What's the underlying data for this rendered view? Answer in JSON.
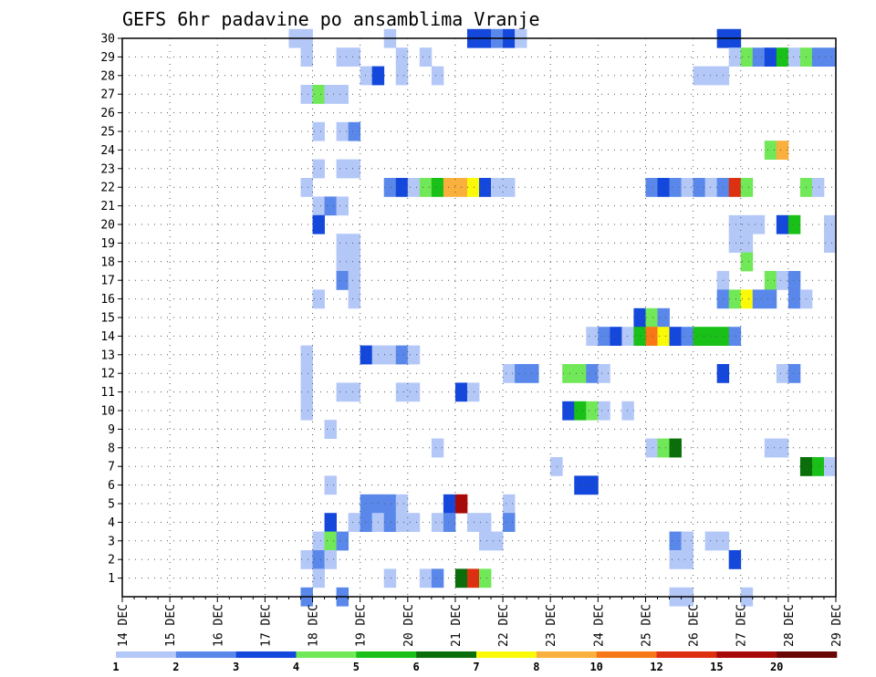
{
  "chart_data": {
    "type": "heatmap",
    "title": "GEFS 6hr padavine po ansamblima Vranje",
    "x_tick_labels": [
      "14 DEC",
      "15 DEC",
      "16 DEC",
      "17 DEC",
      "18 DEC",
      "19 DEC",
      "20 DEC",
      "21 DEC",
      "22 DEC",
      "23 DEC",
      "24 DEC",
      "25 DEC",
      "26 DEC",
      "27 DEC",
      "28 DEC",
      "29 DEC"
    ],
    "y_tick_labels": [
      "1",
      "2",
      "3",
      "4",
      "5",
      "6",
      "7",
      "8",
      "9",
      "10",
      "11",
      "12",
      "13",
      "14",
      "15",
      "16",
      "17",
      "18",
      "19",
      "20",
      "21",
      "22",
      "23",
      "24",
      "25",
      "26",
      "27",
      "28",
      "29",
      "30"
    ],
    "x_range_days": [
      14,
      29
    ],
    "y_range": [
      0,
      30
    ],
    "time_step_hours": 6,
    "grid": true,
    "colorbar": {
      "colors": [
        "#b4c8f8",
        "#5a88ea",
        "#1448dc",
        "#70e858",
        "#18c018",
        "#0a6e0a",
        "#fafa08",
        "#fab03c",
        "#f87818",
        "#dc3010",
        "#a80a0a",
        "#6a0606"
      ],
      "labels": [
        "1",
        "2",
        "3",
        "4",
        "5",
        "6",
        "7",
        "8",
        "10",
        "12",
        "15",
        "20"
      ]
    },
    "series": [
      {
        "member": 30,
        "cells": [
          [
            17.5,
            1
          ],
          [
            17.75,
            1
          ],
          [
            19.5,
            1
          ],
          [
            21.25,
            3
          ],
          [
            21.5,
            3
          ],
          [
            21.75,
            2
          ],
          [
            22.0,
            3
          ],
          [
            22.25,
            1
          ],
          [
            26.5,
            3
          ],
          [
            26.75,
            3
          ]
        ]
      },
      {
        "member": 29,
        "cells": [
          [
            17.75,
            1
          ],
          [
            18.5,
            1
          ],
          [
            18.75,
            1
          ],
          [
            19.75,
            1
          ],
          [
            20.25,
            1
          ],
          [
            26.75,
            1
          ],
          [
            27.0,
            4
          ],
          [
            27.25,
            2
          ],
          [
            27.5,
            3
          ],
          [
            27.75,
            5
          ],
          [
            28.0,
            1
          ],
          [
            28.25,
            4
          ],
          [
            28.5,
            2
          ],
          [
            28.75,
            2
          ],
          [
            29.0,
            2
          ]
        ]
      },
      {
        "member": 28,
        "cells": [
          [
            19.0,
            1
          ],
          [
            19.25,
            3
          ],
          [
            19.75,
            1
          ],
          [
            20.5,
            1
          ],
          [
            26.0,
            1
          ],
          [
            26.25,
            1
          ],
          [
            26.5,
            1
          ]
        ]
      },
      {
        "member": 27,
        "cells": [
          [
            17.75,
            1
          ],
          [
            18.0,
            4
          ],
          [
            18.25,
            1
          ],
          [
            18.5,
            1
          ]
        ]
      },
      {
        "member": 25,
        "cells": [
          [
            18.0,
            1
          ],
          [
            18.5,
            1
          ],
          [
            18.75,
            2
          ]
        ]
      },
      {
        "member": 24,
        "cells": [
          [
            27.5,
            4
          ],
          [
            27.75,
            8
          ]
        ]
      },
      {
        "member": 23,
        "cells": [
          [
            18.0,
            1
          ],
          [
            18.5,
            1
          ],
          [
            18.75,
            1
          ]
        ]
      },
      {
        "member": 22,
        "cells": [
          [
            17.75,
            1
          ],
          [
            19.5,
            2
          ],
          [
            19.75,
            3
          ],
          [
            20.0,
            1
          ],
          [
            20.25,
            4
          ],
          [
            20.5,
            5
          ],
          [
            20.75,
            8
          ],
          [
            21.0,
            8
          ],
          [
            21.25,
            7
          ],
          [
            21.5,
            3
          ],
          [
            21.75,
            1
          ],
          [
            22.0,
            1
          ],
          [
            25.0,
            2
          ],
          [
            25.25,
            3
          ],
          [
            25.5,
            2
          ],
          [
            25.75,
            1
          ],
          [
            26.0,
            2
          ],
          [
            26.25,
            1
          ],
          [
            26.5,
            2
          ],
          [
            26.75,
            12
          ],
          [
            27.0,
            4
          ],
          [
            28.25,
            4
          ],
          [
            28.5,
            1
          ]
        ]
      },
      {
        "member": 21,
        "cells": [
          [
            18.0,
            1
          ],
          [
            18.25,
            2
          ],
          [
            18.5,
            1
          ]
        ]
      },
      {
        "member": 20,
        "cells": [
          [
            18.0,
            3
          ],
          [
            26.75,
            1
          ],
          [
            27.0,
            1
          ],
          [
            27.25,
            1
          ],
          [
            27.75,
            3
          ],
          [
            28.0,
            5
          ],
          [
            28.75,
            1
          ]
        ]
      },
      {
        "member": 19,
        "cells": [
          [
            18.5,
            1
          ],
          [
            18.75,
            1
          ],
          [
            26.75,
            1
          ],
          [
            27.0,
            1
          ],
          [
            28.75,
            1
          ],
          [
            29.0,
            6
          ]
        ]
      },
      {
        "member": 18,
        "cells": [
          [
            18.5,
            1
          ],
          [
            18.75,
            1
          ],
          [
            27.0,
            4
          ]
        ]
      },
      {
        "member": 17,
        "cells": [
          [
            18.5,
            2
          ],
          [
            18.75,
            1
          ],
          [
            26.5,
            1
          ],
          [
            27.5,
            4
          ],
          [
            27.75,
            1
          ],
          [
            28.0,
            2
          ]
        ]
      },
      {
        "member": 16,
        "cells": [
          [
            18.0,
            1
          ],
          [
            18.75,
            1
          ],
          [
            26.5,
            2
          ],
          [
            26.75,
            4
          ],
          [
            27.0,
            7
          ],
          [
            27.25,
            2
          ],
          [
            27.5,
            2
          ],
          [
            28.0,
            2
          ],
          [
            28.25,
            1
          ]
        ]
      },
      {
        "member": 15,
        "cells": [
          [
            24.75,
            3
          ],
          [
            25.0,
            4
          ],
          [
            25.25,
            2
          ]
        ]
      },
      {
        "member": 14,
        "cells": [
          [
            23.75,
            1
          ],
          [
            24.0,
            2
          ],
          [
            24.25,
            3
          ],
          [
            24.5,
            1
          ],
          [
            24.75,
            5
          ],
          [
            25.0,
            10
          ],
          [
            25.25,
            7
          ],
          [
            25.5,
            3
          ],
          [
            25.75,
            2
          ],
          [
            26.0,
            5
          ],
          [
            26.25,
            5
          ],
          [
            26.5,
            5
          ],
          [
            26.75,
            2
          ]
        ]
      },
      {
        "member": 12,
        "cells": [
          [
            17.75,
            1
          ],
          [
            22.0,
            1
          ],
          [
            22.25,
            2
          ],
          [
            22.5,
            2
          ],
          [
            23.25,
            4
          ],
          [
            23.5,
            4
          ],
          [
            23.75,
            2
          ],
          [
            24.0,
            1
          ],
          [
            26.5,
            3
          ],
          [
            27.75,
            1
          ],
          [
            28.0,
            2
          ]
        ]
      },
      {
        "member": 13,
        "cells": [
          [
            17.75,
            1
          ],
          [
            19.0,
            3
          ],
          [
            19.25,
            1
          ],
          [
            19.5,
            1
          ],
          [
            19.75,
            2
          ],
          [
            20.0,
            1
          ]
        ]
      },
      {
        "member": 11,
        "cells": [
          [
            17.75,
            1
          ],
          [
            18.5,
            1
          ],
          [
            18.75,
            1
          ],
          [
            19.75,
            1
          ],
          [
            20.0,
            1
          ],
          [
            21.0,
            3
          ],
          [
            21.25,
            1
          ]
        ]
      },
      {
        "member": 10,
        "cells": [
          [
            17.75,
            1
          ],
          [
            23.25,
            3
          ],
          [
            23.5,
            5
          ],
          [
            23.75,
            4
          ],
          [
            24.0,
            1
          ],
          [
            24.5,
            1
          ]
        ]
      },
      {
        "member": 9,
        "cells": [
          [
            18.25,
            1
          ]
        ]
      },
      {
        "member": 8,
        "cells": [
          [
            20.5,
            1
          ],
          [
            25.0,
            1
          ],
          [
            25.25,
            4
          ],
          [
            25.5,
            6
          ],
          [
            27.5,
            1
          ],
          [
            27.75,
            1
          ]
        ]
      },
      {
        "member": 7,
        "cells": [
          [
            23.0,
            1
          ],
          [
            28.25,
            6
          ],
          [
            28.5,
            5
          ],
          [
            28.75,
            1
          ]
        ]
      },
      {
        "member": 6,
        "cells": [
          [
            18.25,
            1
          ],
          [
            23.5,
            3
          ],
          [
            23.75,
            3
          ]
        ]
      },
      {
        "member": 5,
        "cells": [
          [
            19.0,
            2
          ],
          [
            19.25,
            2
          ],
          [
            19.5,
            2
          ],
          [
            19.75,
            1
          ],
          [
            20.75,
            3
          ],
          [
            21.0,
            15
          ],
          [
            22.0,
            1
          ]
        ]
      },
      {
        "member": 4,
        "cells": [
          [
            18.25,
            3
          ],
          [
            18.75,
            1
          ],
          [
            19.0,
            2
          ],
          [
            19.25,
            1
          ],
          [
            19.5,
            2
          ],
          [
            19.75,
            1
          ],
          [
            20.0,
            1
          ],
          [
            20.5,
            1
          ],
          [
            20.75,
            2
          ],
          [
            21.25,
            1
          ],
          [
            21.5,
            1
          ],
          [
            22.0,
            2
          ]
        ]
      },
      {
        "member": 3,
        "cells": [
          [
            18.0,
            1
          ],
          [
            18.25,
            4
          ],
          [
            18.5,
            2
          ],
          [
            21.5,
            1
          ],
          [
            21.75,
            1
          ],
          [
            25.5,
            2
          ],
          [
            25.75,
            1
          ],
          [
            26.25,
            1
          ],
          [
            26.5,
            1
          ]
        ]
      },
      {
        "member": 2,
        "cells": [
          [
            17.75,
            1
          ],
          [
            18.0,
            2
          ],
          [
            18.25,
            1
          ],
          [
            25.5,
            1
          ],
          [
            25.75,
            1
          ],
          [
            26.75,
            3
          ]
        ]
      },
      {
        "member": 1,
        "cells": [
          [
            18.0,
            1
          ],
          [
            19.5,
            1
          ],
          [
            20.25,
            1
          ],
          [
            20.5,
            2
          ],
          [
            21.0,
            6
          ],
          [
            21.25,
            12
          ],
          [
            21.5,
            4
          ]
        ]
      },
      {
        "member": 0,
        "cells": [
          [
            17.75,
            2
          ],
          [
            18.5,
            2
          ],
          [
            25.5,
            1
          ],
          [
            25.75,
            1
          ],
          [
            27.0,
            1
          ]
        ]
      }
    ]
  }
}
